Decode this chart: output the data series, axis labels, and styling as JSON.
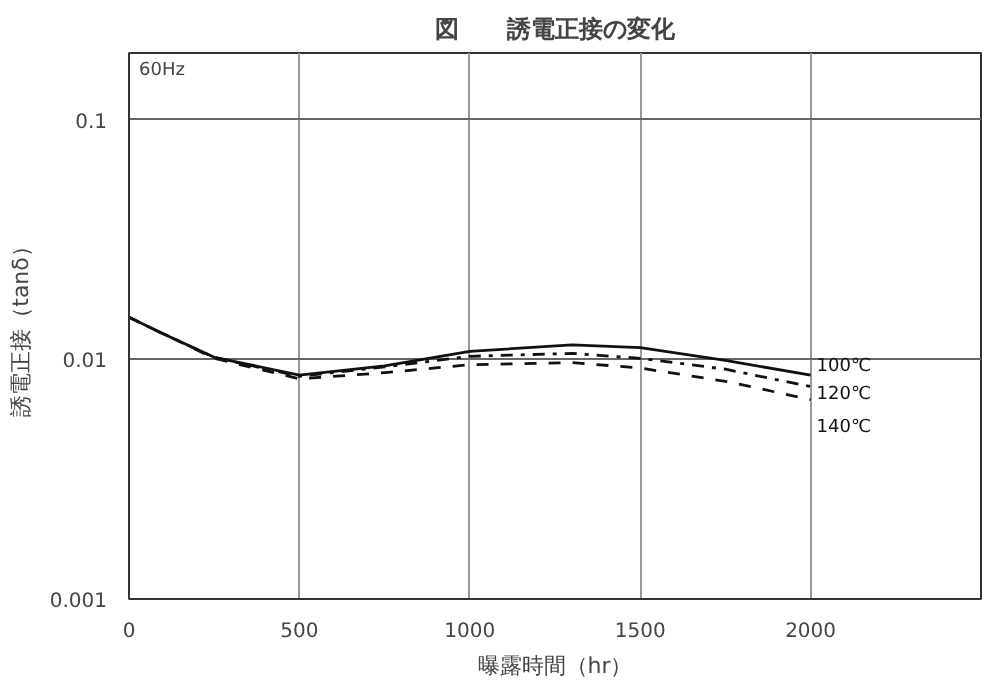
{
  "chart_data": {
    "type": "line",
    "title": "図　　誘電正接の変化",
    "xlabel": "曝露時間（hr）",
    "ylabel": "誘電正接（tanδ）",
    "x": [
      0,
      100,
      250,
      500,
      750,
      1000,
      1300,
      1500,
      1750,
      2000
    ],
    "series": [
      {
        "name": "100℃",
        "color": "#111111",
        "line_style": "solid",
        "values": [
          0.015,
          0.0128,
          0.0102,
          0.0086,
          0.0094,
          0.0108,
          0.0115,
          0.0112,
          0.0099,
          0.0086
        ]
      },
      {
        "name": "120℃",
        "color": "#111111",
        "line_style": "dashdot",
        "values": [
          0.015,
          0.0128,
          0.0102,
          0.0085,
          0.0093,
          0.0103,
          0.0106,
          0.0101,
          0.0091,
          0.0077
        ]
      },
      {
        "name": "140℃",
        "color": "#111111",
        "line_style": "dashed",
        "values": [
          0.015,
          0.0128,
          0.0101,
          0.0083,
          0.0088,
          0.0095,
          0.0097,
          0.0092,
          0.0081,
          0.0068
        ]
      }
    ],
    "xlim": [
      0,
      2500
    ],
    "ylim": [
      0.001,
      0.19
    ],
    "xticks": [
      0,
      500,
      1000,
      1500,
      2000
    ],
    "yticks": [
      0.001,
      0.01,
      0.1
    ],
    "log": "y",
    "grid": true,
    "annotations": [
      "60Hz"
    ]
  }
}
